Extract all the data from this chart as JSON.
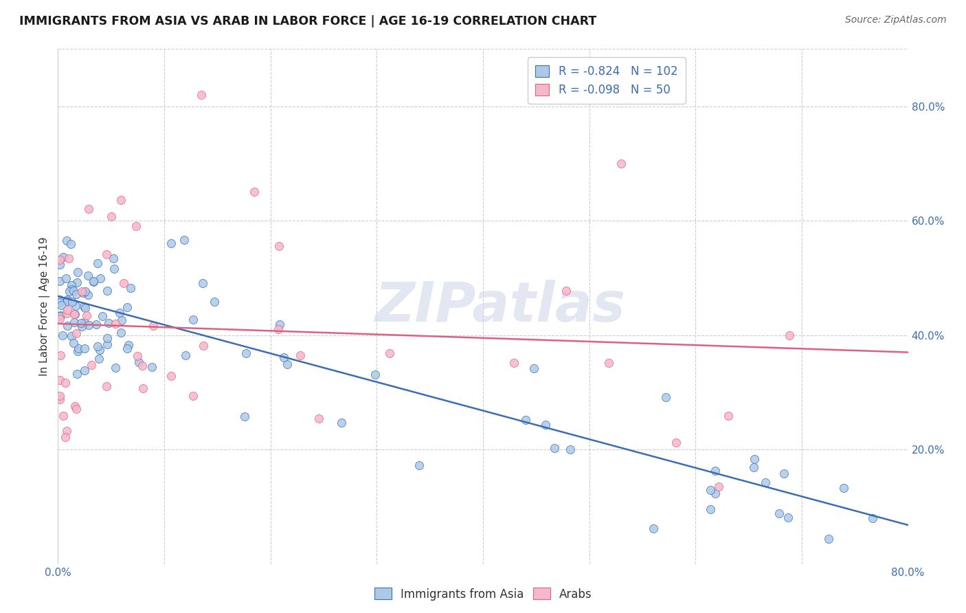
{
  "title": "IMMIGRANTS FROM ASIA VS ARAB IN LABOR FORCE | AGE 16-19 CORRELATION CHART",
  "source": "Source: ZipAtlas.com",
  "ylabel": "In Labor Force | Age 16-19",
  "xlim": [
    0.0,
    0.8
  ],
  "ylim": [
    0.0,
    0.9
  ],
  "y_ticks_right": [
    0.2,
    0.4,
    0.6,
    0.8
  ],
  "y_tick_labels_right": [
    "20.0%",
    "40.0%",
    "60.0%",
    "80.0%"
  ],
  "legend_R_asia": "-0.824",
  "legend_N_asia": "102",
  "legend_R_arab": "-0.098",
  "legend_N_arab": "50",
  "asia_color": "#adc9e8",
  "arab_color": "#f5b8cb",
  "asia_line_color": "#3a6db5",
  "arab_line_color": "#e06080",
  "asia_trendline_x0": 0.0,
  "asia_trendline_y0": 0.468,
  "asia_trendline_x1": 0.8,
  "asia_trendline_y1": 0.068,
  "arab_trendline_x0": 0.0,
  "arab_trendline_y0": 0.42,
  "arab_trendline_x1": 0.8,
  "arab_trendline_y1": 0.37,
  "watermark_text": "ZIPatlas"
}
